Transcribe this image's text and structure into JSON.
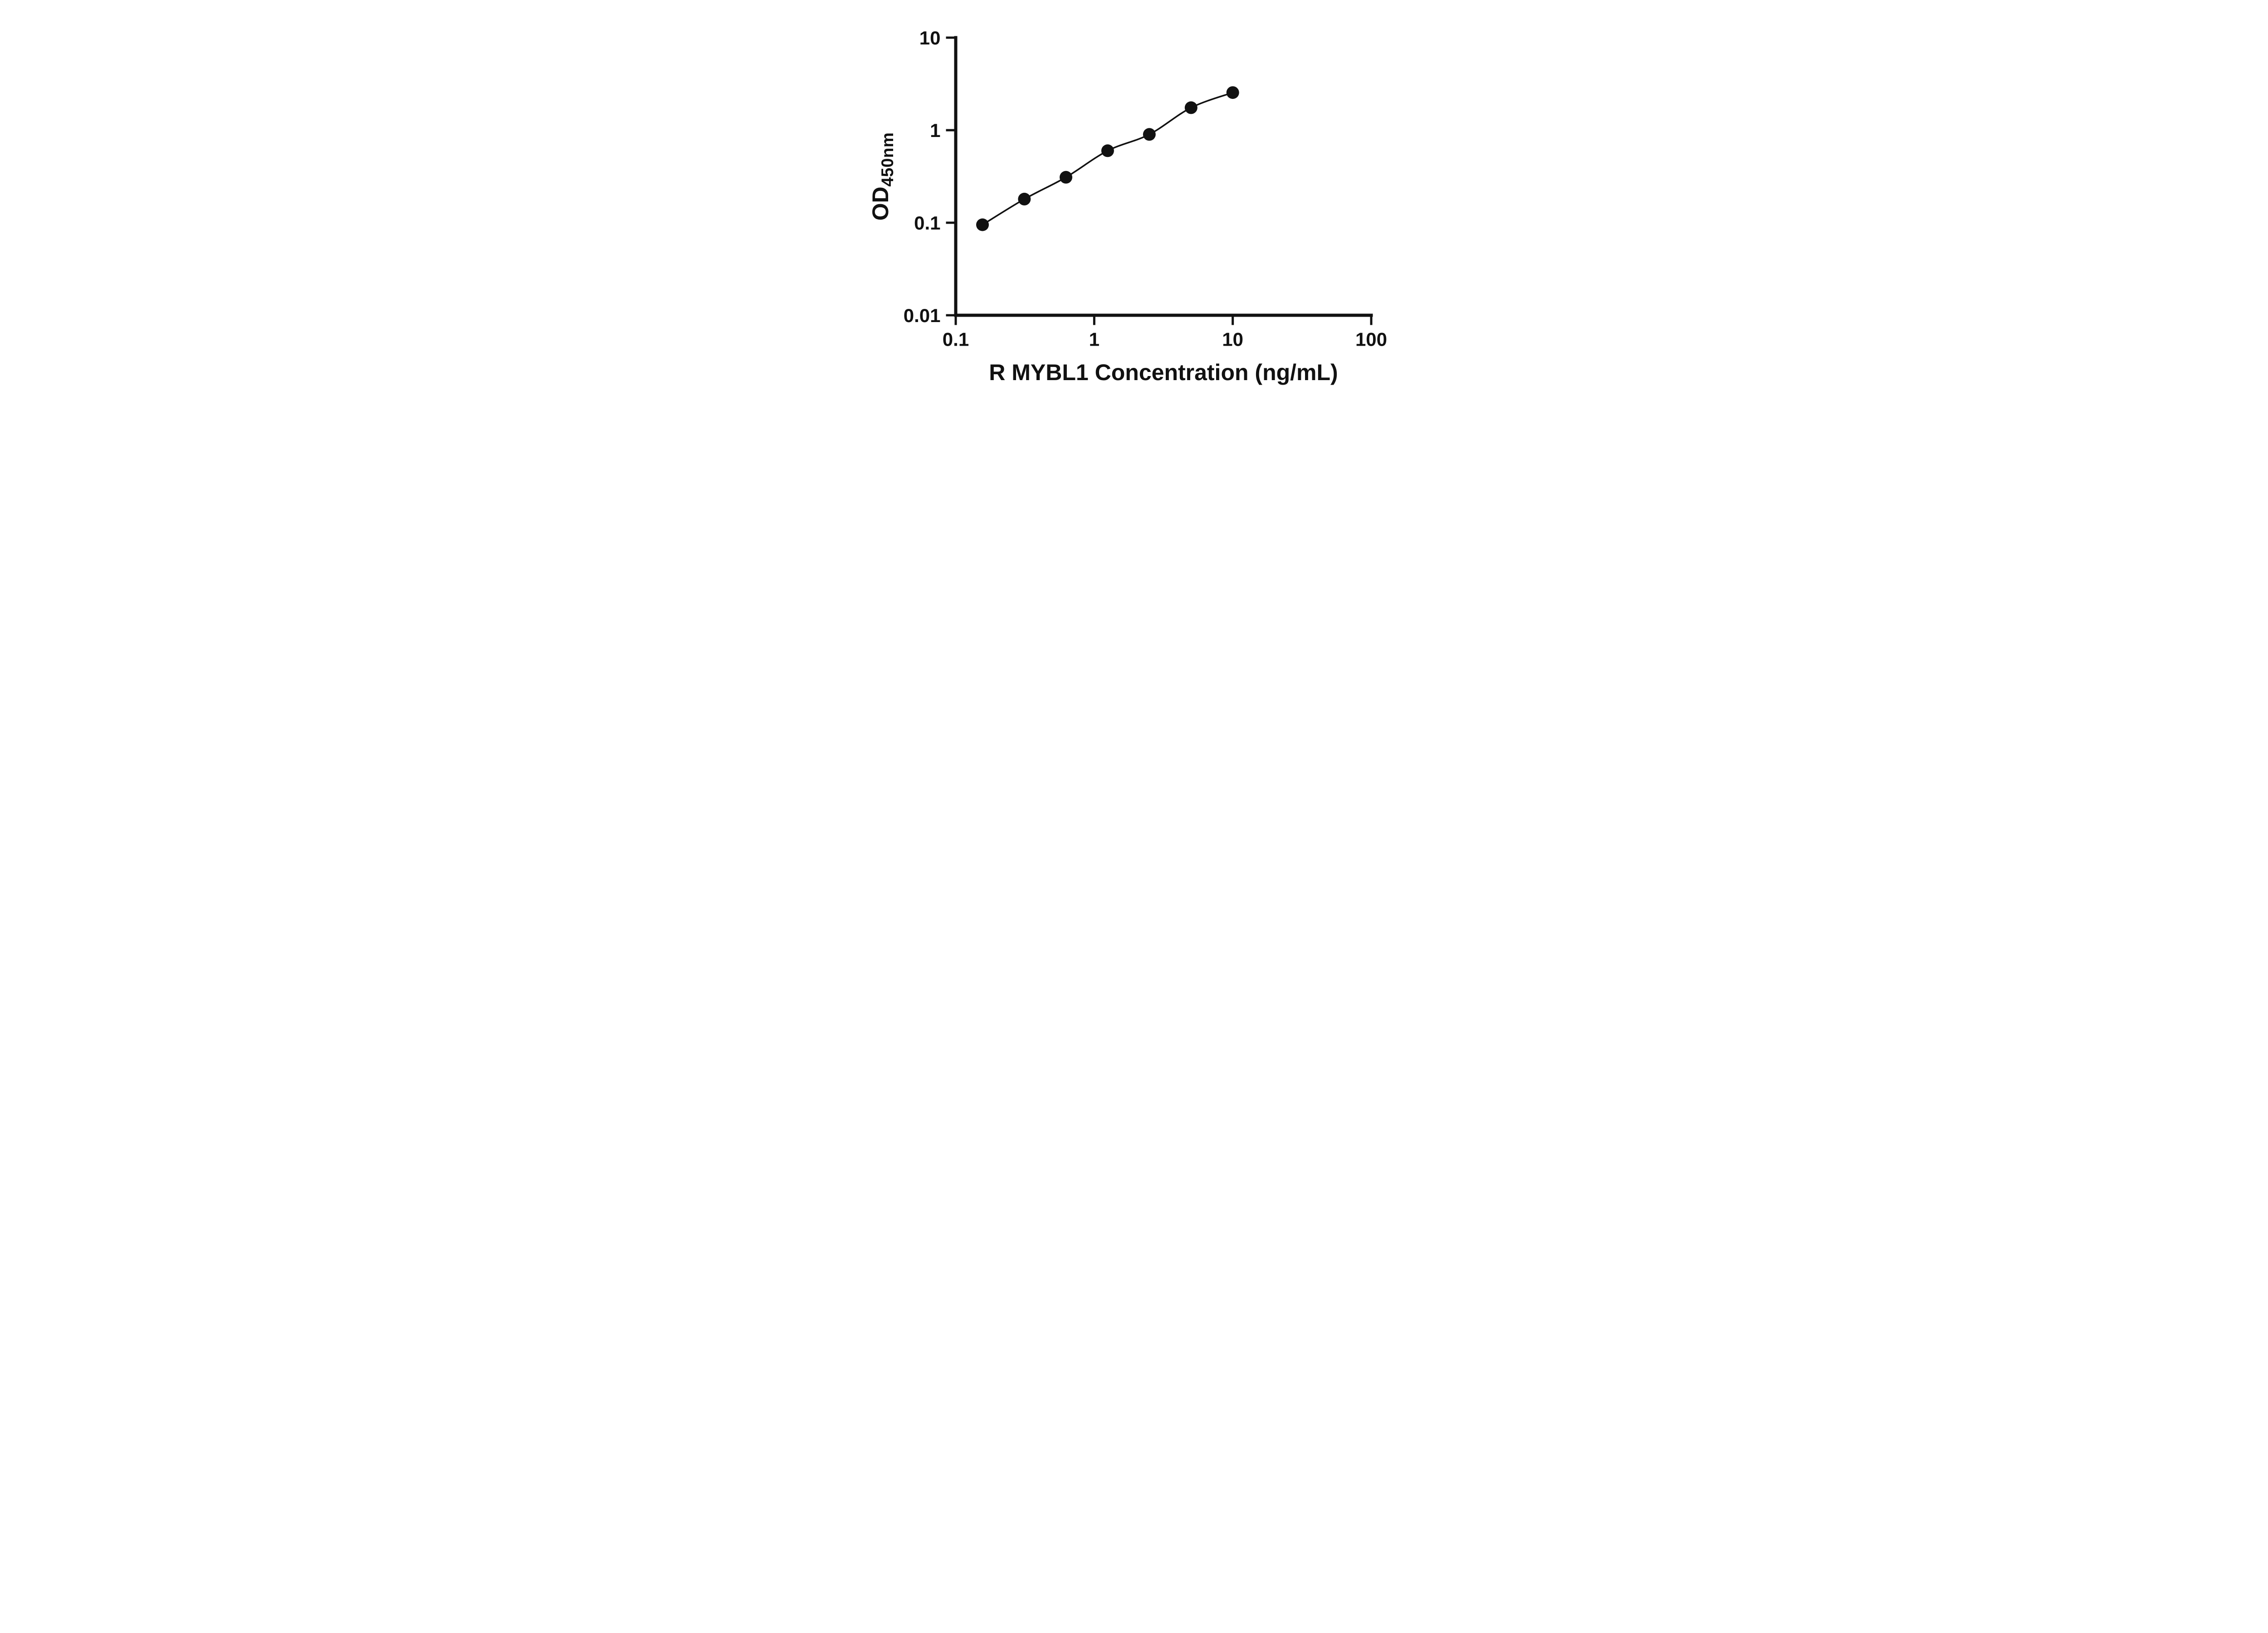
{
  "chart_data": {
    "type": "line",
    "title": "",
    "xlabel": "R MYBL1 Concentration (ng/mL)",
    "ylabel": "OD",
    "ylabel_subscript": "450nm",
    "x_scale": "log10",
    "y_scale": "log10",
    "xlim": [
      0.1,
      100
    ],
    "ylim": [
      0.01,
      10
    ],
    "grid": false,
    "legend": "none",
    "axis_color": "#111111",
    "background_color": "#ffffff",
    "x_ticks": [
      {
        "value": 0.1,
        "label": "0.1"
      },
      {
        "value": 1,
        "label": "1"
      },
      {
        "value": 10,
        "label": "10"
      },
      {
        "value": 100,
        "label": "100"
      }
    ],
    "y_ticks": [
      {
        "value": 0.01,
        "label": "0.01"
      },
      {
        "value": 0.1,
        "label": "0.1"
      },
      {
        "value": 1,
        "label": "1"
      },
      {
        "value": 10,
        "label": "10"
      }
    ],
    "series": [
      {
        "marker": "circle",
        "color": "#111111",
        "points": [
          {
            "x": 0.156,
            "y": 0.095
          },
          {
            "x": 0.313,
            "y": 0.18
          },
          {
            "x": 0.625,
            "y": 0.31
          },
          {
            "x": 1.25,
            "y": 0.6
          },
          {
            "x": 2.5,
            "y": 0.9
          },
          {
            "x": 5,
            "y": 1.75
          },
          {
            "x": 10,
            "y": 2.55
          }
        ]
      }
    ]
  }
}
